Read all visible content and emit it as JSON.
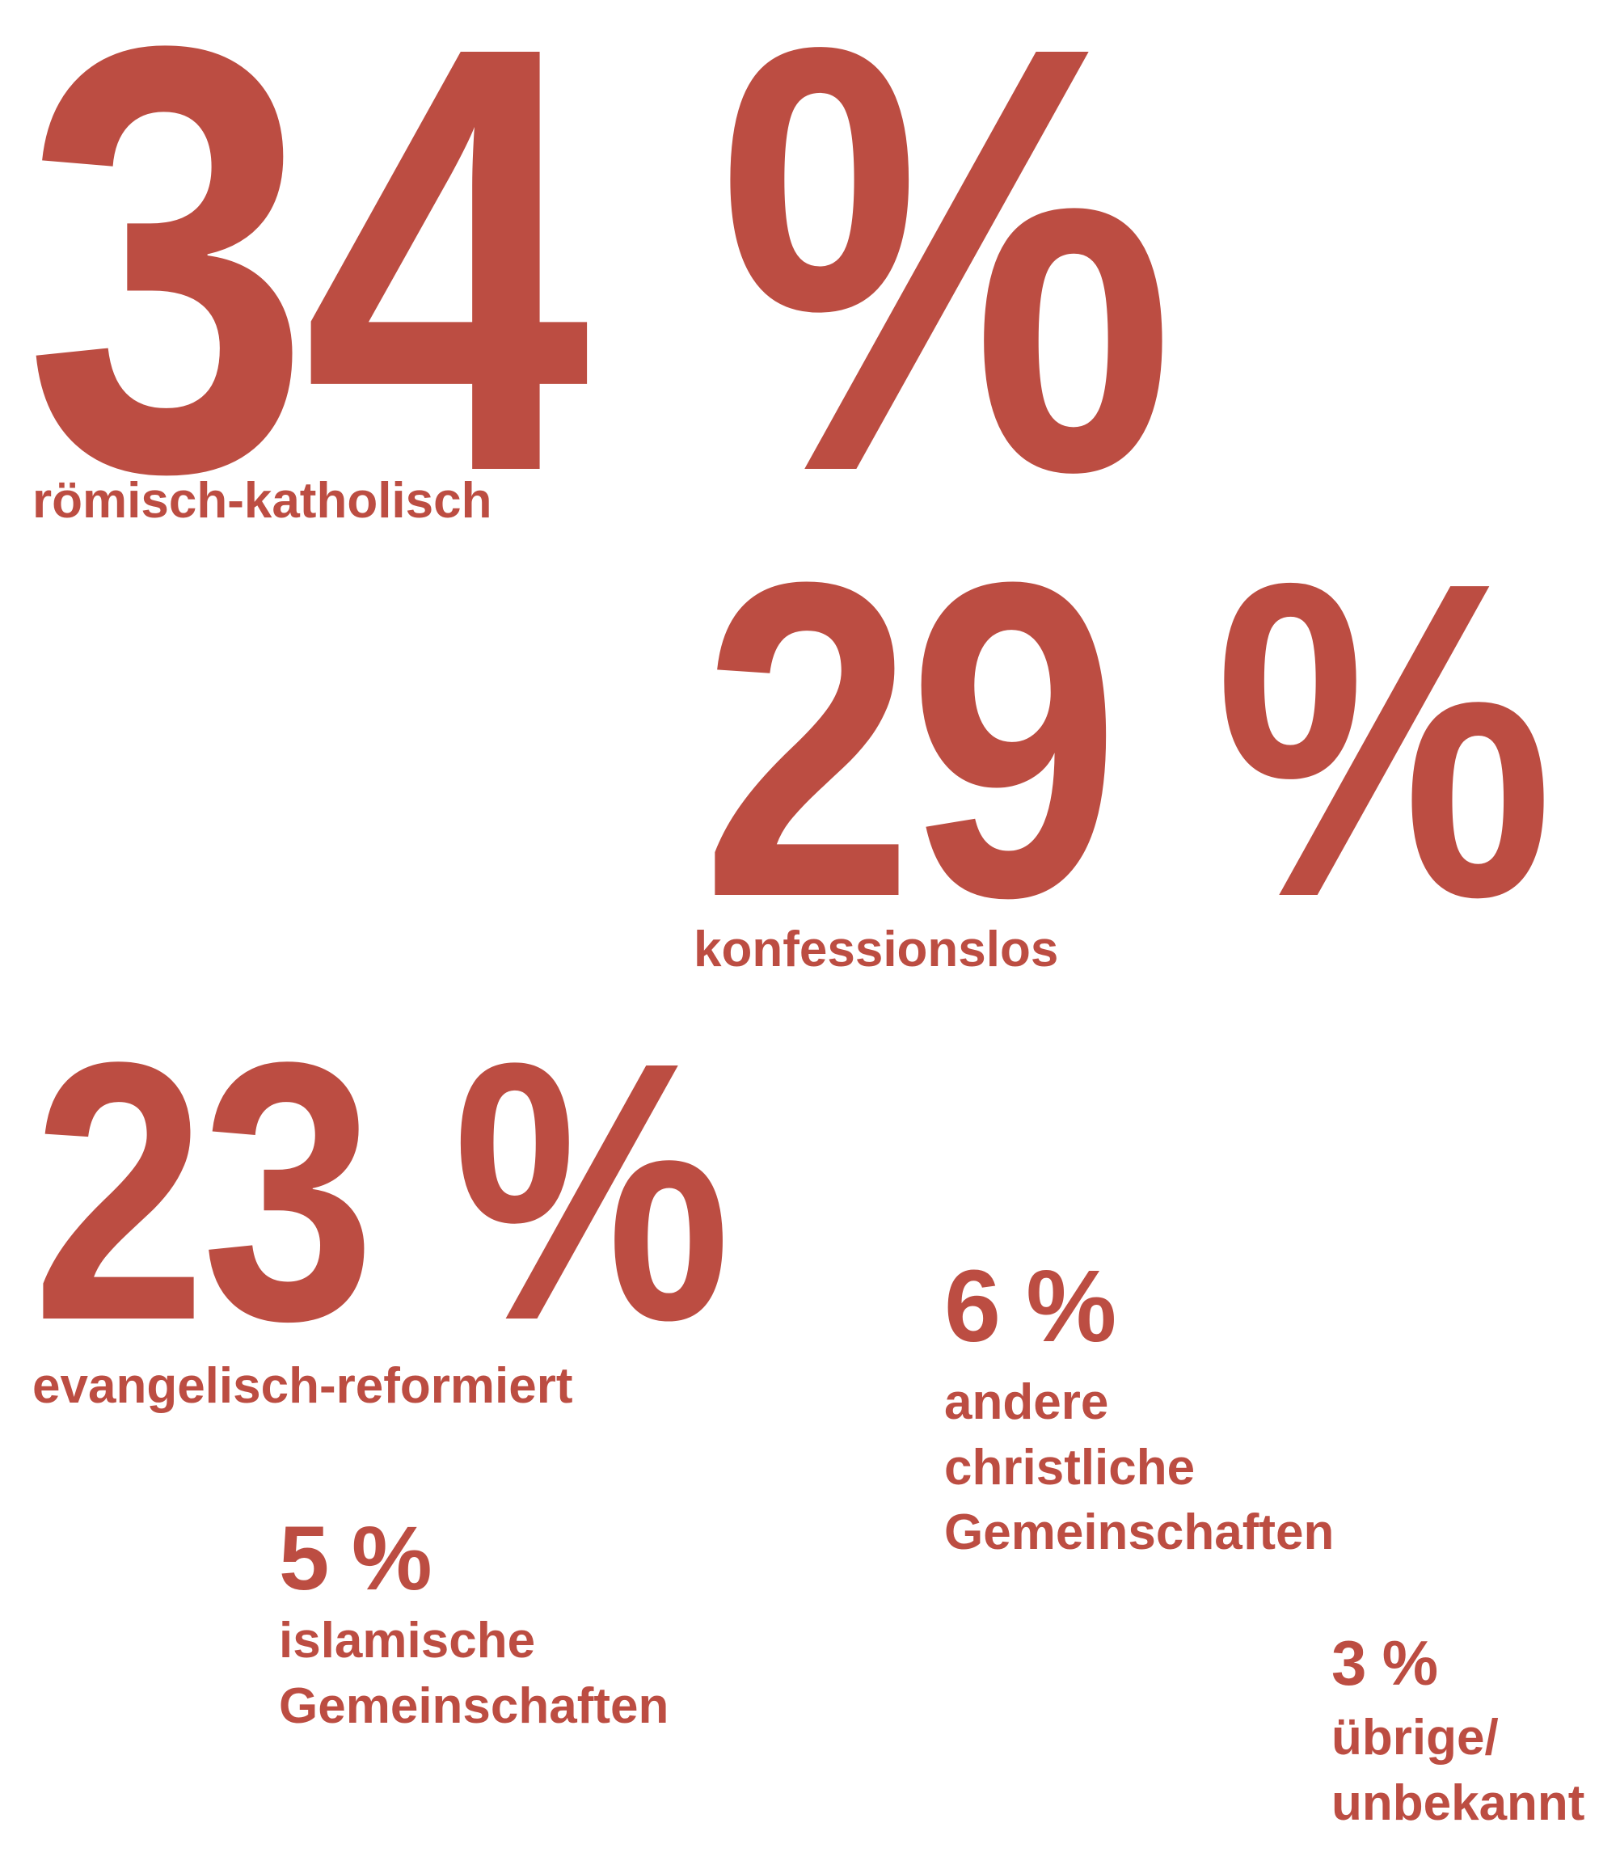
{
  "accent_color": "#BC4D42",
  "background_color": "#FFFFFF",
  "chart_data": {
    "type": "other",
    "subtype": "typographic-percentage-infographic",
    "title": "",
    "unit": "%",
    "categories": [
      "römisch-katholisch",
      "konfessionslos",
      "evangelisch-reformiert",
      "andere christliche Gemeinschaften",
      "islamische Gemeinschaften",
      "übrige/unbekannt"
    ],
    "values": [
      34,
      29,
      23,
      6,
      5,
      3
    ],
    "legend_position": "none",
    "grid": false
  },
  "items": [
    {
      "value": "34 %",
      "label_lines": [
        "römisch-katholisch"
      ]
    },
    {
      "value": "29 %",
      "label_lines": [
        "konfessionslos"
      ]
    },
    {
      "value": "23 %",
      "label_lines": [
        "evangelisch-reformiert"
      ]
    },
    {
      "value": "6 %",
      "label_lines": [
        "andere",
        "christliche",
        "Gemeinschaften"
      ]
    },
    {
      "value": "5 %",
      "label_lines": [
        "islamische",
        "Gemeinschaften"
      ]
    },
    {
      "value": "3 %",
      "label_lines": [
        "übrige/",
        "unbekannt"
      ]
    }
  ]
}
